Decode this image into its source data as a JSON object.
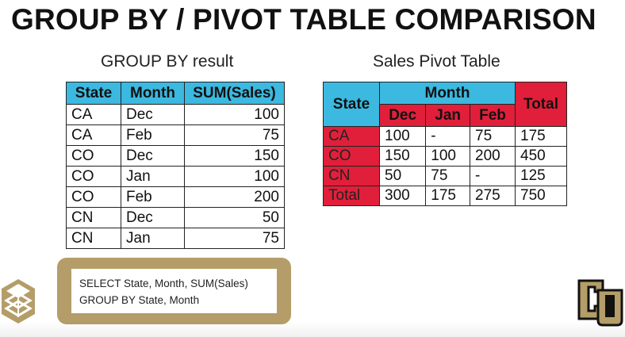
{
  "title": "GROUP BY / PIVOT TABLE COMPARISON",
  "group_by": {
    "subtitle": "GROUP BY result",
    "headers": [
      "State",
      "Month",
      "SUM(Sales)"
    ],
    "rows": [
      [
        "CA",
        "Dec",
        "100"
      ],
      [
        "CA",
        "Feb",
        "75"
      ],
      [
        "CO",
        "Dec",
        "150"
      ],
      [
        "CO",
        "Jan",
        "100"
      ],
      [
        "CO",
        "Feb",
        "200"
      ],
      [
        "CN",
        "Dec",
        "50"
      ],
      [
        "CN",
        "Jan",
        "75"
      ]
    ]
  },
  "pivot": {
    "subtitle": "Sales Pivot Table",
    "state_header": "State",
    "month_header": "Month",
    "total_header": "Total",
    "months": [
      "Dec",
      "Jan",
      "Feb"
    ],
    "rows": [
      [
        "CA",
        "100",
        "-",
        "75",
        "175"
      ],
      [
        "CO",
        "150",
        "100",
        "200",
        "450"
      ],
      [
        "CN",
        "50",
        "75",
        "-",
        "125"
      ],
      [
        "Total",
        "300",
        "175",
        "275",
        "750"
      ]
    ]
  },
  "sql": {
    "line1": "SELECT State, Month, SUM(Sales)",
    "line2": "GROUP BY State, Month"
  },
  "colors": {
    "header_blue": "#3bb9e0",
    "header_red": "#e11f3a",
    "code_frame": "#b49d68"
  },
  "icons": {
    "left": "stacked-cube-logo-icon",
    "right": "cu-university-logo-icon"
  }
}
